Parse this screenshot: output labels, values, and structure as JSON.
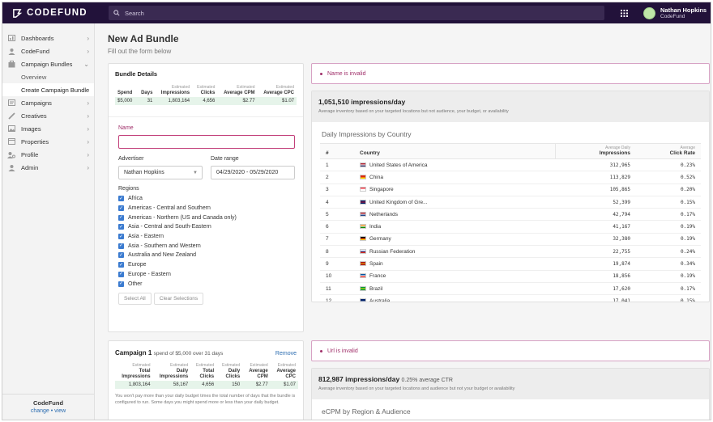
{
  "brand": {
    "name": "CODEFUND"
  },
  "search": {
    "placeholder": "Search"
  },
  "user": {
    "name": "Nathan Hopkins",
    "org": "CodeFund"
  },
  "sidebar": {
    "items": [
      {
        "label": "Dashboards",
        "icon": "dashboard-icon"
      },
      {
        "label": "CodeFund",
        "icon": "user-icon"
      },
      {
        "label": "Campaign Bundles",
        "icon": "bundle-icon",
        "expanded": true
      },
      {
        "label": "Campaigns",
        "icon": "campaigns-icon"
      },
      {
        "label": "Creatives",
        "icon": "pencil-icon"
      },
      {
        "label": "Images",
        "icon": "image-icon"
      },
      {
        "label": "Properties",
        "icon": "properties-icon"
      },
      {
        "label": "Profile",
        "icon": "profile-icon"
      },
      {
        "label": "Admin",
        "icon": "admin-icon"
      }
    ],
    "subitems": [
      {
        "label": "Overview"
      },
      {
        "label": "Create Campaign Bundle",
        "active": true
      }
    ],
    "footer": {
      "title": "CodeFund",
      "change": "change",
      "sep": "•",
      "view": "view"
    }
  },
  "page": {
    "title": "New Ad Bundle",
    "subtitle": "Fill out the form below"
  },
  "bundle": {
    "title": "Bundle Details",
    "est": "Estimated",
    "headers": [
      "Spend",
      "Days",
      "Impressions",
      "Clicks",
      "Average CPM",
      "Average CPC"
    ],
    "values": [
      "$5,000",
      "31",
      "1,803,164",
      "4,656",
      "$2.77",
      "$1.07"
    ]
  },
  "form": {
    "name_label": "Name",
    "name_value": "",
    "advertiser_label": "Advertiser",
    "advertiser_value": "Nathan Hopkins",
    "date_label": "Date range",
    "date_value": "04/29/2020 - 05/29/2020",
    "regions_label": "Regions",
    "regions": [
      "Africa",
      "Americas - Central and Southern",
      "Americas - Northern (US and Canada only)",
      "Asia - Central and South-Eastern",
      "Asia - Eastern",
      "Asia - Southern and Western",
      "Australia and New Zealand",
      "Europe",
      "Europe - Eastern",
      "Other"
    ],
    "select_all": "Select All",
    "clear": "Clear Selections"
  },
  "alerts": {
    "name_invalid": "Name is invalid",
    "url_invalid": "Url is invalid"
  },
  "inventory1": {
    "headline": "1,051,510 impressions/day",
    "desc": "Average inventory based on your targeted locations but not audience, your budget, or availability",
    "table_title": "Daily Impressions by Country",
    "col_num": "#",
    "col_country": "Country",
    "col_imp_est": "Average Daily",
    "col_imp": "Impressions",
    "col_ctr_est": "Average",
    "col_ctr": "Click Rate",
    "rows": [
      {
        "n": "1",
        "country": "United States of America",
        "imp": "312,965",
        "ctr": "0.23%",
        "flag": [
          "#b22234",
          "#ffffff",
          "#3c3b6e"
        ]
      },
      {
        "n": "2",
        "country": "China",
        "imp": "113,829",
        "ctr": "0.52%",
        "flag": [
          "#de2910",
          "#de2910",
          "#ffde00"
        ]
      },
      {
        "n": "3",
        "country": "Singapore",
        "imp": "105,865",
        "ctr": "0.20%",
        "flag": [
          "#ef3340",
          "#ffffff",
          "#ffffff"
        ]
      },
      {
        "n": "4",
        "country": "United Kingdom of Gre...",
        "imp": "52,399",
        "ctr": "0.15%",
        "flag": [
          "#012169",
          "#c8102e",
          "#012169"
        ]
      },
      {
        "n": "5",
        "country": "Netherlands",
        "imp": "42,794",
        "ctr": "0.17%",
        "flag": [
          "#ae1c28",
          "#ffffff",
          "#21468b"
        ]
      },
      {
        "n": "6",
        "country": "India",
        "imp": "41,167",
        "ctr": "0.19%",
        "flag": [
          "#ff9933",
          "#ffffff",
          "#138808"
        ]
      },
      {
        "n": "7",
        "country": "Germany",
        "imp": "32,380",
        "ctr": "0.19%",
        "flag": [
          "#000000",
          "#dd0000",
          "#ffce00"
        ]
      },
      {
        "n": "8",
        "country": "Russian Federation",
        "imp": "22,755",
        "ctr": "0.24%",
        "flag": [
          "#ffffff",
          "#0039a6",
          "#d52b1e"
        ]
      },
      {
        "n": "9",
        "country": "Spain",
        "imp": "19,874",
        "ctr": "0.34%",
        "flag": [
          "#aa151b",
          "#f1bf00",
          "#aa151b"
        ]
      },
      {
        "n": "10",
        "country": "France",
        "imp": "18,856",
        "ctr": "0.19%",
        "flag": [
          "#0055a4",
          "#ffffff",
          "#ef4135"
        ]
      },
      {
        "n": "11",
        "country": "Brazil",
        "imp": "17,620",
        "ctr": "0.17%",
        "flag": [
          "#009c3b",
          "#ffdf00",
          "#009c3b"
        ]
      },
      {
        "n": "12",
        "country": "Australia",
        "imp": "17,041",
        "ctr": "0.15%",
        "flag": [
          "#012169",
          "#012169",
          "#ffffff"
        ]
      }
    ]
  },
  "campaign": {
    "title": "Campaign 1",
    "spend_text": "spend of $5,000 over 31 days",
    "remove": "Remove",
    "est": "Estimated",
    "headers": [
      "Total Impressions",
      "Daily Impressions",
      "Total Clicks",
      "Daily Clicks",
      "Average CPM",
      "Average CPC"
    ],
    "values": [
      "1,803,164",
      "58,167",
      "4,656",
      "150",
      "$2.77",
      "$1.07"
    ],
    "note": "You won't pay more than your daily budget times the total number of days that the bundle is configured to run. Some days you might spend more or less than your daily budget."
  },
  "inventory2": {
    "headline": "812,987 impressions/day",
    "ctr_note": "0.25% average CTR",
    "desc": "Average inventory based on your targeted locations and audience but not your budget or availability",
    "table_title": "eCPM by Region & Audience"
  },
  "colors": {
    "topbar": "#22123a",
    "accent": "#3b7bd0",
    "invalid": "#a0306a",
    "success_bg": "#e6f4ea"
  }
}
